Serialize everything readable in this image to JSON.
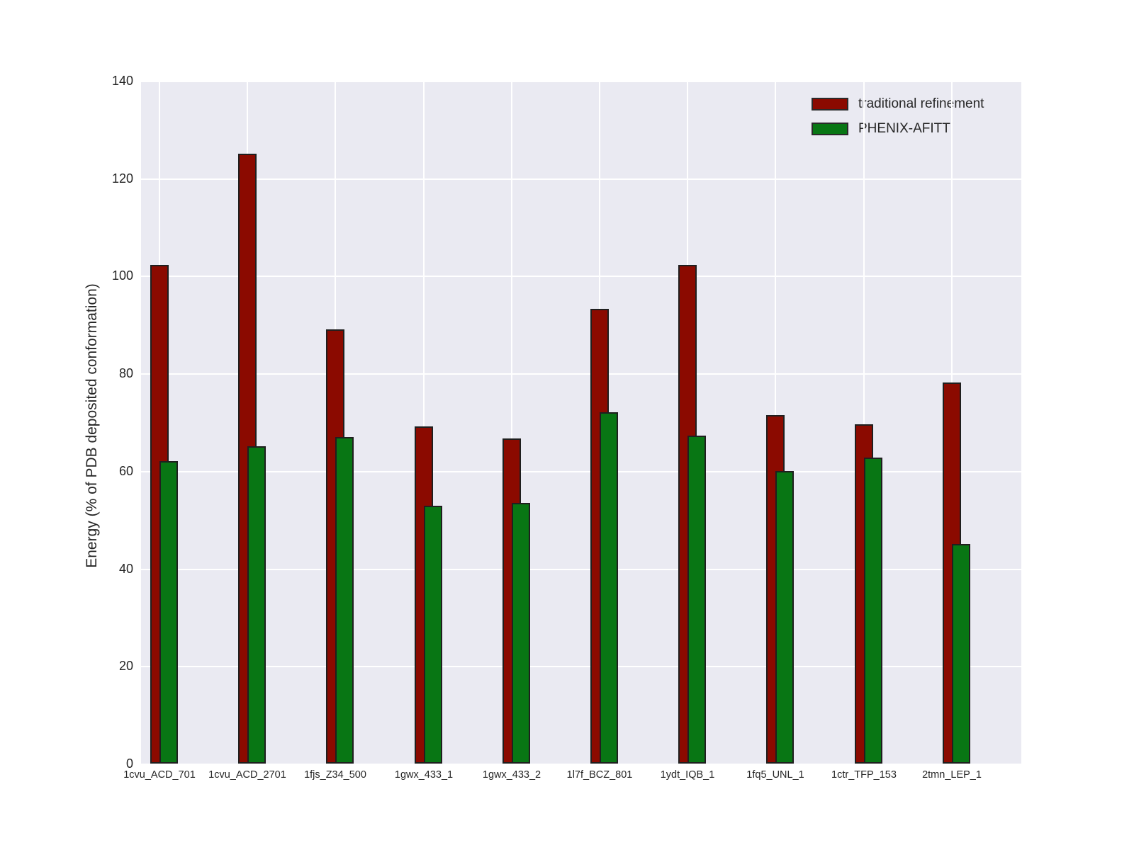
{
  "figure": {
    "background": "#FFFFFF",
    "plot_background": "#EAEAF2",
    "grid_color": "#FFFFFF",
    "text_color": "#262626",
    "bar_edge_color": "#1F1F1F"
  },
  "chart_data": {
    "type": "bar",
    "title": "",
    "xlabel": "",
    "ylabel": "Energy (% of PDB deposited conformation)",
    "ylim": [
      0,
      140
    ],
    "yticks": [
      0,
      20,
      40,
      60,
      80,
      100,
      120,
      140
    ],
    "grid": true,
    "legend_position": "upper right",
    "categories": [
      "1cvu_ACD_701",
      "1cvu_ACD_2701",
      "1fjs_Z34_500",
      "1gwx_433_1",
      "1gwx_433_2",
      "1l7f_BCZ_801",
      "1ydt_IQB_1",
      "1fq5_UNL_1",
      "1ctr_TFP_153",
      "2tmn_LEP_1"
    ],
    "series": [
      {
        "name": "traditional refinement",
        "color": "#8B0A00",
        "values": [
          102.3,
          125.1,
          89.0,
          69.1,
          66.6,
          93.3,
          102.3,
          71.4,
          69.5,
          78.1
        ]
      },
      {
        "name": "PHENIX-AFITT",
        "color": "#087614",
        "values": [
          62.0,
          65.0,
          66.9,
          52.8,
          53.4,
          72.1,
          67.2,
          60.0,
          62.7,
          45.0
        ]
      }
    ]
  }
}
